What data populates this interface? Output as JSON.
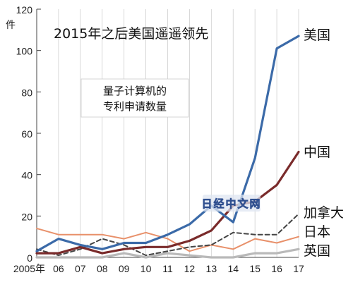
{
  "watermark": "日经中文网",
  "chart_data": {
    "type": "line",
    "title": "2015年之后美国遥遥领先",
    "annotation": [
      "量子计算机的",
      "专利申请数量"
    ],
    "ylabel": "件",
    "xlabel": "",
    "ylim": [
      0,
      120
    ],
    "yticks": [
      0,
      20,
      40,
      60,
      80,
      100,
      120
    ],
    "x": [
      "2005年",
      "06",
      "07",
      "08",
      "09",
      "10",
      "11",
      "12",
      "13",
      "14",
      "15",
      "16",
      "17"
    ],
    "grid": "vertical",
    "legend": "labels at line ends",
    "series": [
      {
        "name": "美国",
        "color": "#3b6aa8",
        "dash": "solid",
        "values": [
          3,
          9,
          6,
          4,
          7,
          7,
          11,
          16,
          25,
          17,
          48,
          101,
          107
        ]
      },
      {
        "name": "中国",
        "color": "#7a2b2b",
        "dash": "solid",
        "values": [
          2,
          2,
          5,
          2,
          4,
          5,
          5,
          8,
          13,
          25,
          27,
          35,
          51
        ]
      },
      {
        "name": "加拿大",
        "color": "#444444",
        "dash": "dashed",
        "values": [
          4,
          1,
          4,
          9,
          6,
          1,
          3,
          5,
          6,
          12,
          11,
          11,
          21
        ]
      },
      {
        "name": "日本",
        "color": "#e8906a",
        "dash": "solid",
        "values": [
          14,
          11,
          11,
          11,
          9,
          12,
          9,
          3,
          6,
          4,
          9,
          7,
          10
        ]
      },
      {
        "name": "英国",
        "color": "#b9b9b9",
        "dash": "solid",
        "values": [
          0,
          0,
          0,
          0,
          2,
          0,
          2,
          1,
          0,
          0,
          2,
          2,
          4
        ]
      }
    ]
  }
}
